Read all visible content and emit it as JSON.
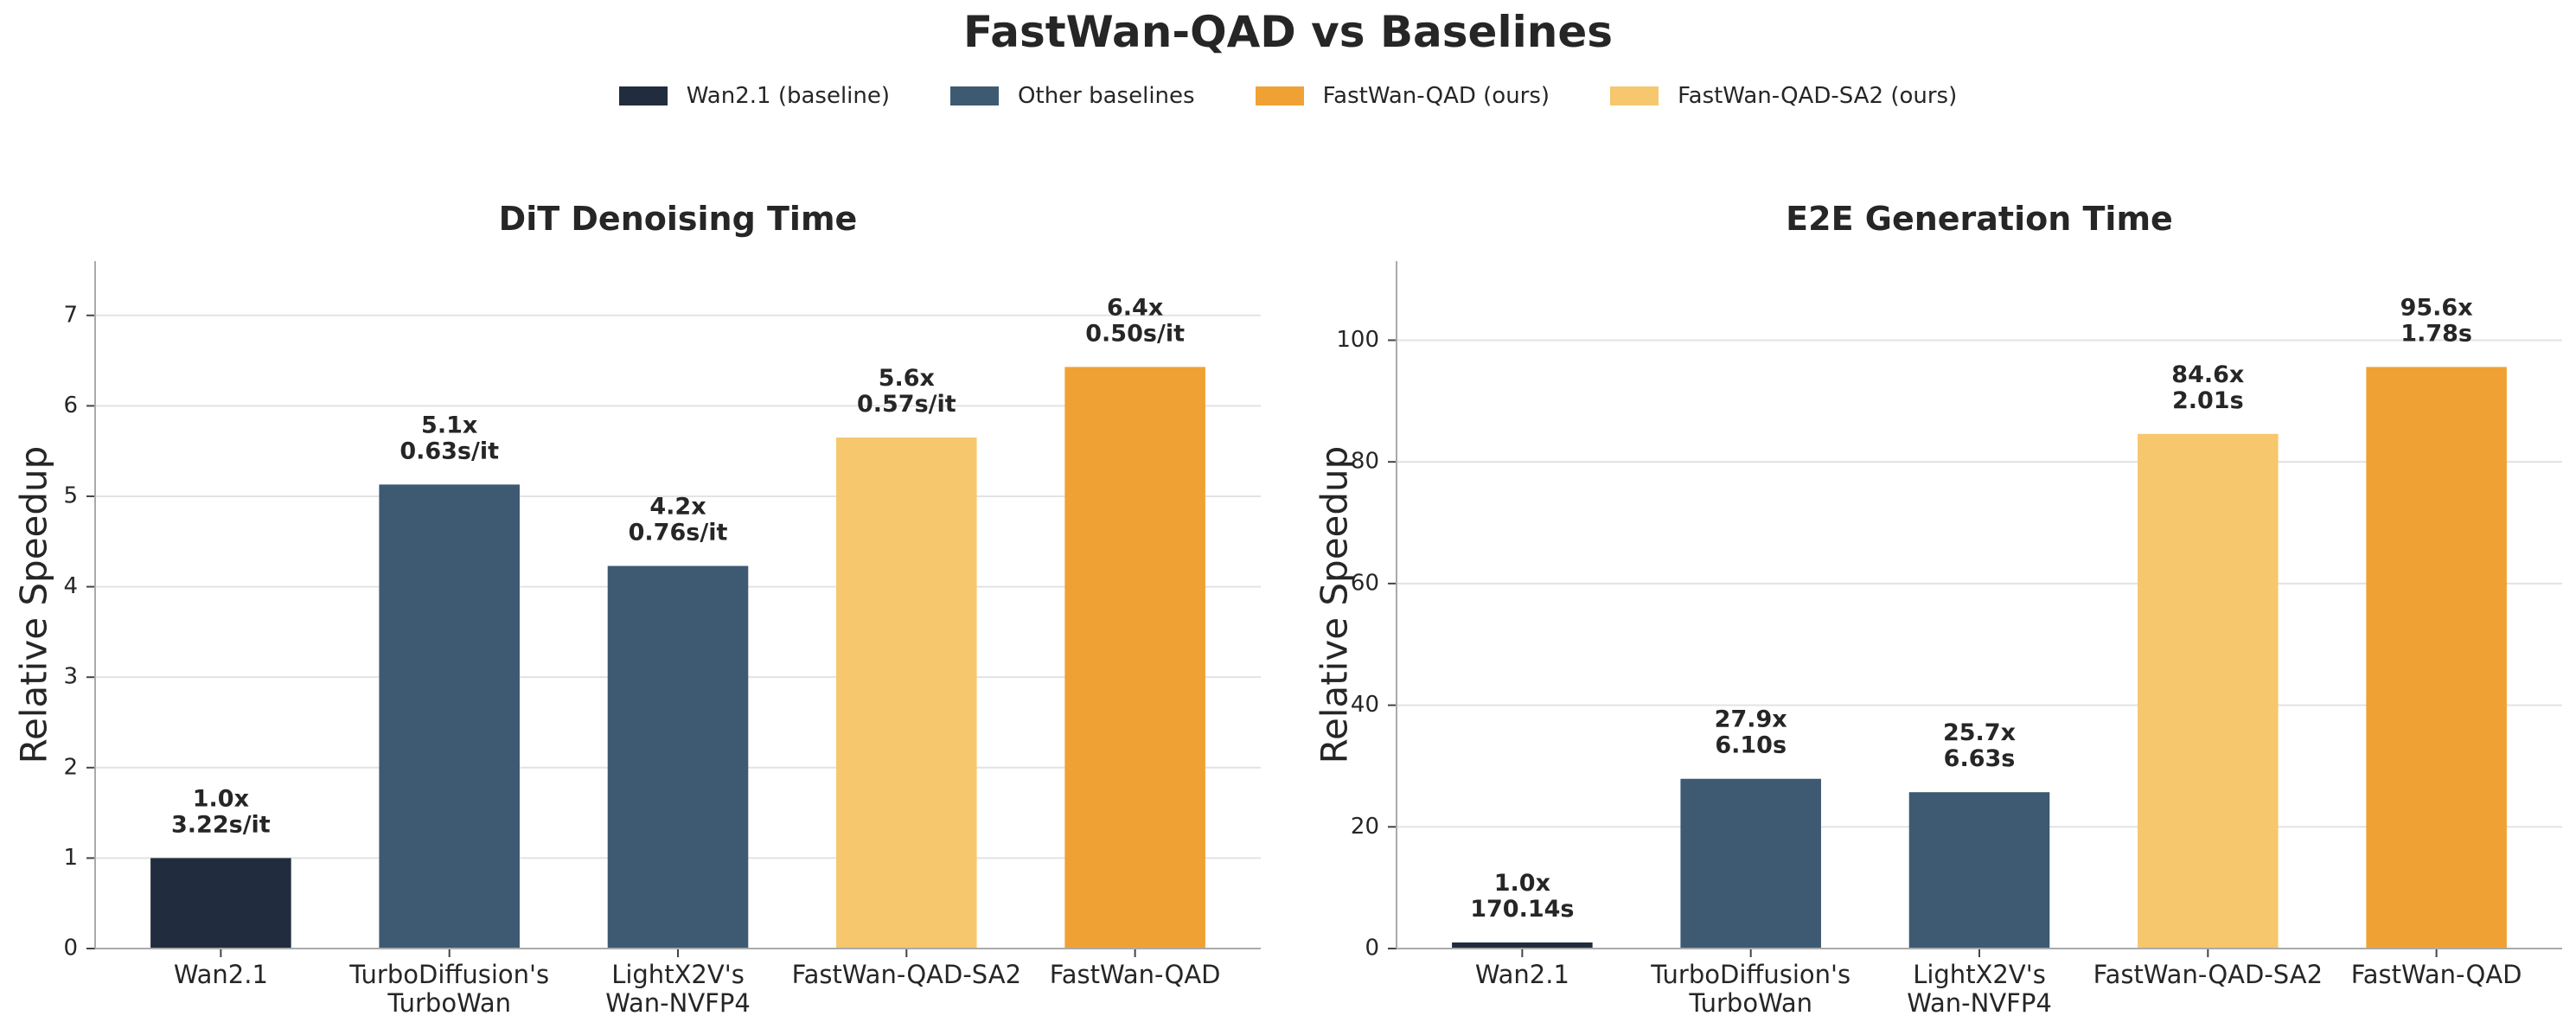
{
  "title": "FastWan-QAD vs Baselines",
  "legend": [
    {
      "label": "Wan2.1 (baseline)",
      "color": "#212d3e"
    },
    {
      "label": "Other baselines",
      "color": "#3d5a72"
    },
    {
      "label": "FastWan-QAD (ours)",
      "color": "#f0a134"
    },
    {
      "label": "FastWan-QAD-SA2 (ours)",
      "color": "#f6c76d"
    }
  ],
  "chart_data": [
    {
      "type": "bar",
      "title": "DiT Denoising Time",
      "ylabel": "Relative Speedup",
      "xlabel": "",
      "categories": [
        [
          "Wan2.1"
        ],
        [
          "TurboDiffusion's",
          "TurboWan"
        ],
        [
          "LightX2V's",
          "Wan-NVFP4"
        ],
        [
          "FastWan-QAD-SA2"
        ],
        [
          "FastWan-QAD"
        ]
      ],
      "values": [
        1.0,
        5.13,
        4.23,
        5.65,
        6.43
      ],
      "labels": [
        [
          "1.0x",
          "3.22s/it"
        ],
        [
          "5.1x",
          "0.63s/it"
        ],
        [
          "4.2x",
          "0.76s/it"
        ],
        [
          "5.6x",
          "0.57s/it"
        ],
        [
          "6.4x",
          "0.50s/it"
        ]
      ],
      "colors": [
        "#212d3e",
        "#3d5a72",
        "#3d5a72",
        "#f6c76d",
        "#f0a134"
      ],
      "ylim": [
        0,
        7.6
      ],
      "yticks": [
        0,
        1,
        2,
        3,
        4,
        5,
        6,
        7
      ],
      "grid": "horizontal"
    },
    {
      "type": "bar",
      "title": "E2E Generation Time",
      "ylabel": "Relative Speedup",
      "xlabel": "",
      "categories": [
        [
          "Wan2.1"
        ],
        [
          "TurboDiffusion's",
          "TurboWan"
        ],
        [
          "LightX2V's",
          "Wan-NVFP4"
        ],
        [
          "FastWan-QAD-SA2"
        ],
        [
          "FastWan-QAD"
        ]
      ],
      "values": [
        1.0,
        27.9,
        25.7,
        84.6,
        95.6
      ],
      "labels": [
        [
          "1.0x",
          "170.14s"
        ],
        [
          "27.9x",
          "6.10s"
        ],
        [
          "25.7x",
          "6.63s"
        ],
        [
          "84.6x",
          "2.01s"
        ],
        [
          "95.6x",
          "1.78s"
        ]
      ],
      "colors": [
        "#212d3e",
        "#3d5a72",
        "#3d5a72",
        "#f6c76d",
        "#f0a134"
      ],
      "ylim": [
        0,
        113
      ],
      "yticks": [
        0,
        20,
        40,
        60,
        80,
        100
      ],
      "grid": "horizontal"
    }
  ]
}
